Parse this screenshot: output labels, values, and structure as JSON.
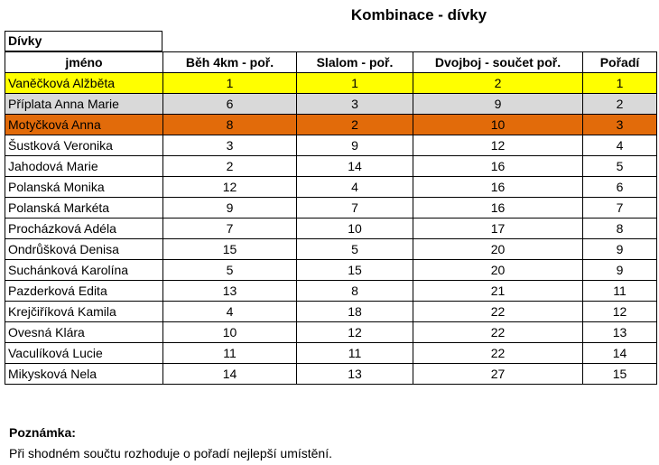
{
  "title": "Kombinace - dívky",
  "category": "Dívky",
  "headers": [
    "jméno",
    "Běh 4km - poř.",
    "Slalom - poř.",
    "Dvojboj - součet poř.",
    "Pořadí"
  ],
  "rows": [
    {
      "name": "Vaněčková Alžběta",
      "run": "1",
      "slalom": "1",
      "sum": "2",
      "rank": "1",
      "highlight": "gold"
    },
    {
      "name": "Příplata Anna Marie",
      "run": "6",
      "slalom": "3",
      "sum": "9",
      "rank": "2",
      "highlight": "silver"
    },
    {
      "name": "Motyčková Anna",
      "run": "8",
      "slalom": "2",
      "sum": "10",
      "rank": "3",
      "highlight": "bronze"
    },
    {
      "name": "Šustková Veronika",
      "run": "3",
      "slalom": "9",
      "sum": "12",
      "rank": "4",
      "highlight": ""
    },
    {
      "name": "Jahodová Marie",
      "run": "2",
      "slalom": "14",
      "sum": "16",
      "rank": "5",
      "highlight": ""
    },
    {
      "name": "Polanská Monika",
      "run": "12",
      "slalom": "4",
      "sum": "16",
      "rank": "6",
      "highlight": ""
    },
    {
      "name": "Polanská Markéta",
      "run": "9",
      "slalom": "7",
      "sum": "16",
      "rank": "7",
      "highlight": ""
    },
    {
      "name": "Procházková Adéla",
      "run": "7",
      "slalom": "10",
      "sum": "17",
      "rank": "8",
      "highlight": ""
    },
    {
      "name": "Ondrůšková Denisa",
      "run": "15",
      "slalom": "5",
      "sum": "20",
      "rank": "9",
      "highlight": ""
    },
    {
      "name": "Suchánková Karolína",
      "run": "5",
      "slalom": "15",
      "sum": "20",
      "rank": "9",
      "highlight": ""
    },
    {
      "name": "Pazderková Edita",
      "run": "13",
      "slalom": "8",
      "sum": "21",
      "rank": "11",
      "highlight": ""
    },
    {
      "name": "Krejčiříková Kamila",
      "run": "4",
      "slalom": "18",
      "sum": "22",
      "rank": "12",
      "highlight": ""
    },
    {
      "name": "Ovesná Klára",
      "run": "10",
      "slalom": "12",
      "sum": "22",
      "rank": "13",
      "highlight": ""
    },
    {
      "name": "Vaculíková Lucie",
      "run": "11",
      "slalom": "11",
      "sum": "22",
      "rank": "14",
      "highlight": ""
    },
    {
      "name": "Mikysková Nela",
      "run": "14",
      "slalom": "13",
      "sum": "27",
      "rank": "15",
      "highlight": ""
    }
  ],
  "note": {
    "title": "Poznámka:",
    "text": "Při shodném součtu rozhoduje o pořadí nejlepší umístění."
  },
  "colors": {
    "gold": "#ffff00",
    "silver": "#d9d9d9",
    "bronze": "#e26b0a"
  }
}
